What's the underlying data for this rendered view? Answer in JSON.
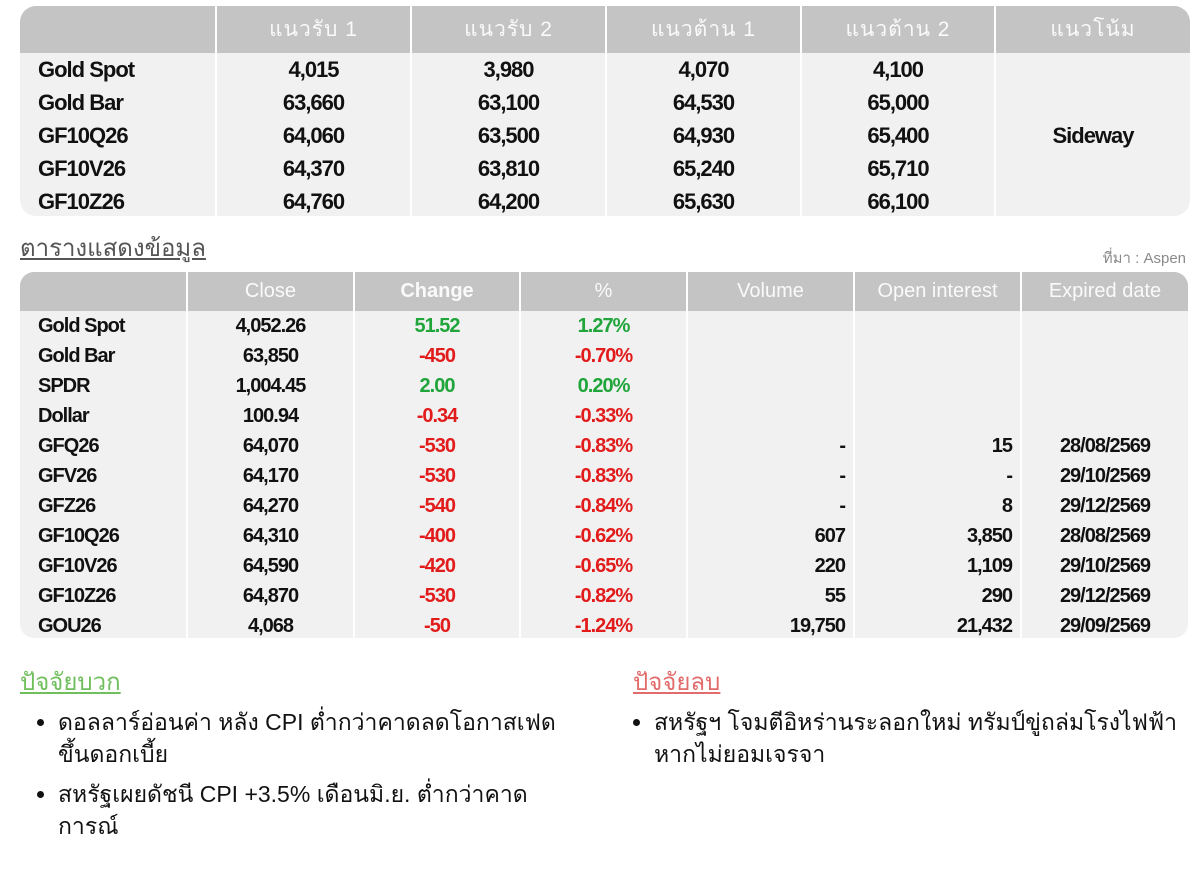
{
  "levels": {
    "headers": [
      "",
      "แนวรับ 1",
      "แนวรับ 2",
      "แนวต้าน 1",
      "แนวต้าน 2",
      "แนวโน้ม"
    ],
    "rows": [
      {
        "name": "Gold Spot",
        "s1": "4,015",
        "s2": "3,980",
        "r1": "4,070",
        "r2": "4,100"
      },
      {
        "name": "Gold Bar",
        "s1": "63,660",
        "s2": "63,100",
        "r1": "64,530",
        "r2": "65,000"
      },
      {
        "name": "GF10Q26",
        "s1": "64,060",
        "s2": "63,500",
        "r1": "64,930",
        "r2": "65,400"
      },
      {
        "name": "GF10V26",
        "s1": "64,370",
        "s2": "63,810",
        "r1": "65,240",
        "r2": "65,710"
      },
      {
        "name": "GF10Z26",
        "s1": "64,760",
        "s2": "64,200",
        "r1": "65,630",
        "r2": "66,100"
      }
    ],
    "trend": "Sideway"
  },
  "caption": "ตารางแสดงข้อมูล",
  "source": "ที่มา : Aspen",
  "data_table": {
    "headers": [
      "",
      "Close",
      "Change",
      "%",
      "Volume",
      "Open interest",
      "Expired date"
    ],
    "rows": [
      {
        "name": "Gold Spot",
        "close": "4,052.26",
        "change": "51.52",
        "pct": "1.27%",
        "volume": "",
        "oi": "",
        "expiry": "",
        "dir": "pos"
      },
      {
        "name": "Gold Bar",
        "close": "63,850",
        "change": "-450",
        "pct": "-0.70%",
        "volume": "",
        "oi": "",
        "expiry": "",
        "dir": "neg"
      },
      {
        "name": "SPDR",
        "close": "1,004.45",
        "change": "2.00",
        "pct": "0.20%",
        "volume": "",
        "oi": "",
        "expiry": "",
        "dir": "pos"
      },
      {
        "name": "Dollar",
        "close": "100.94",
        "change": "-0.34",
        "pct": "-0.33%",
        "volume": "",
        "oi": "",
        "expiry": "",
        "dir": "neg"
      },
      {
        "name": "GFQ26",
        "close": "64,070",
        "change": "-530",
        "pct": "-0.83%",
        "volume": "-",
        "oi": "15",
        "expiry": "28/08/2569",
        "dir": "neg"
      },
      {
        "name": "GFV26",
        "close": "64,170",
        "change": "-530",
        "pct": "-0.83%",
        "volume": "-",
        "oi": "-",
        "expiry": "29/10/2569",
        "dir": "neg"
      },
      {
        "name": "GFZ26",
        "close": "64,270",
        "change": "-540",
        "pct": "-0.84%",
        "volume": "-",
        "oi": "8",
        "expiry": "29/12/2569",
        "dir": "neg"
      },
      {
        "name": "GF10Q26",
        "close": "64,310",
        "change": "-400",
        "pct": "-0.62%",
        "volume": "607",
        "oi": "3,850",
        "expiry": "28/08/2569",
        "dir": "neg"
      },
      {
        "name": "GF10V26",
        "close": "64,590",
        "change": "-420",
        "pct": "-0.65%",
        "volume": "220",
        "oi": "1,109",
        "expiry": "29/10/2569",
        "dir": "neg"
      },
      {
        "name": "GF10Z26",
        "close": "64,870",
        "change": "-530",
        "pct": "-0.82%",
        "volume": "55",
        "oi": "290",
        "expiry": "29/12/2569",
        "dir": "neg"
      },
      {
        "name": "GOU26",
        "close": "4,068",
        "change": "-50",
        "pct": "-1.24%",
        "volume": "19,750",
        "oi": "21,432",
        "expiry": "29/09/2569",
        "dir": "neg"
      }
    ]
  },
  "positive": {
    "title": "ปัจจัยบวก",
    "items": [
      "ดอลลาร์อ่อนค่า หลัง CPI ต่ำกว่าคาดลดโอกาสเฟดขึ้นดอกเบี้ย",
      "สหรัฐเผยดัชนี CPI +3.5% เดือนมิ.ย. ต่ำกว่าคาดการณ์"
    ]
  },
  "negative": {
    "title": "ปัจจัยลบ",
    "items": [
      "สหรัฐฯ โจมตีอิหร่านระลอกใหม่ ทรัมป์ขู่ถล่มโรงไฟฟ้าหากไม่ยอมเจรจา"
    ]
  },
  "colors": {
    "up": "#1fa53a",
    "down": "#e21b1b",
    "header": "#c4c4c4"
  }
}
